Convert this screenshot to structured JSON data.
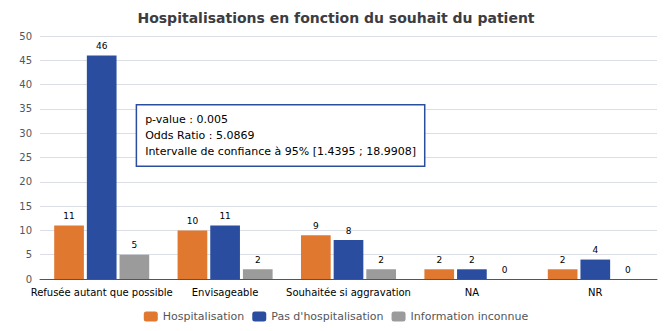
{
  "chart_data": {
    "type": "bar",
    "title": "Hospitalisations en fonction du souhait du patient",
    "categories": [
      "Refusée autant que possible",
      "Envisageable",
      "Souhaitée si aggravation",
      "NA",
      "NR"
    ],
    "series": [
      {
        "name": "Hospitalisation",
        "color": "#E07830",
        "values": [
          11,
          10,
          9,
          2,
          2
        ]
      },
      {
        "name": "Pas d'hospitalisation",
        "color": "#2B4DA0",
        "values": [
          46,
          11,
          8,
          2,
          4
        ]
      },
      {
        "name": "Information inconnue",
        "color": "#9B9B9B",
        "values": [
          5,
          2,
          2,
          0,
          0
        ]
      }
    ],
    "ylim": [
      0,
      50
    ],
    "yticks": [
      0,
      5,
      10,
      15,
      20,
      25,
      30,
      35,
      40,
      45,
      50
    ],
    "grid": true,
    "legend": "bottom",
    "data_labels": true,
    "annotation": "p-value : 0.005\nOdds Ratio : 5.0869\nIntervalle de confiance à 95% [1.4395 ; 18.9908]"
  }
}
